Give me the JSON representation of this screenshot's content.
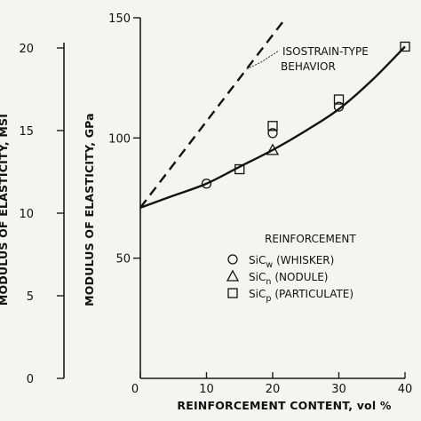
{
  "chart_data": {
    "type": "scatter",
    "xlabel": "REINFORCEMENT CONTENT, vol %",
    "ylabel": "MODULUS OF ELASTICITY, GPa",
    "y2label": "MODULUS OF ELASTICITY, MSI",
    "xlim": [
      0,
      40
    ],
    "ylim": [
      0,
      150
    ],
    "y2lim": [
      0,
      20
    ],
    "x_ticks": [
      0,
      10,
      20,
      30,
      40
    ],
    "y_ticks": [
      50,
      100,
      150
    ],
    "y2_ticks": [
      0,
      5,
      10,
      15,
      20
    ],
    "legend": {
      "title": "Reinforcement",
      "entries": [
        {
          "symbol": "circle",
          "main": "SiC",
          "sub": "w",
          "label": "(WHISKER)"
        },
        {
          "symbol": "triangle",
          "main": "SiC",
          "sub": "n",
          "label": "(NODULE)"
        },
        {
          "symbol": "square",
          "main": "SiC",
          "sub": "p",
          "label": "(PARTICULATE)"
        }
      ]
    },
    "series": [
      {
        "name": "SiCw (WHISKER)",
        "marker": "circle",
        "x": [
          10,
          20,
          30
        ],
        "y": [
          81,
          102,
          113
        ]
      },
      {
        "name": "SiCn (NODULE)",
        "marker": "triangle",
        "x": [
          20
        ],
        "y": [
          95
        ]
      },
      {
        "name": "SiCp (PARTICULATE)",
        "marker": "square",
        "x": [
          15,
          20,
          30,
          40
        ],
        "y": [
          87,
          105,
          116,
          138
        ]
      }
    ],
    "fit_curve": {
      "style": "solid",
      "x": [
        0,
        5,
        10,
        15,
        20,
        25,
        30,
        35,
        40
      ],
      "y": [
        71,
        76,
        81,
        88,
        95,
        103,
        112,
        124,
        138
      ]
    },
    "isostrain_line": {
      "style": "dashed",
      "label_lines": [
        "ISOSTRAIN-TYPE",
        "BEHAVIOR"
      ],
      "x": [
        0,
        22
      ],
      "y": [
        71,
        150
      ]
    }
  }
}
